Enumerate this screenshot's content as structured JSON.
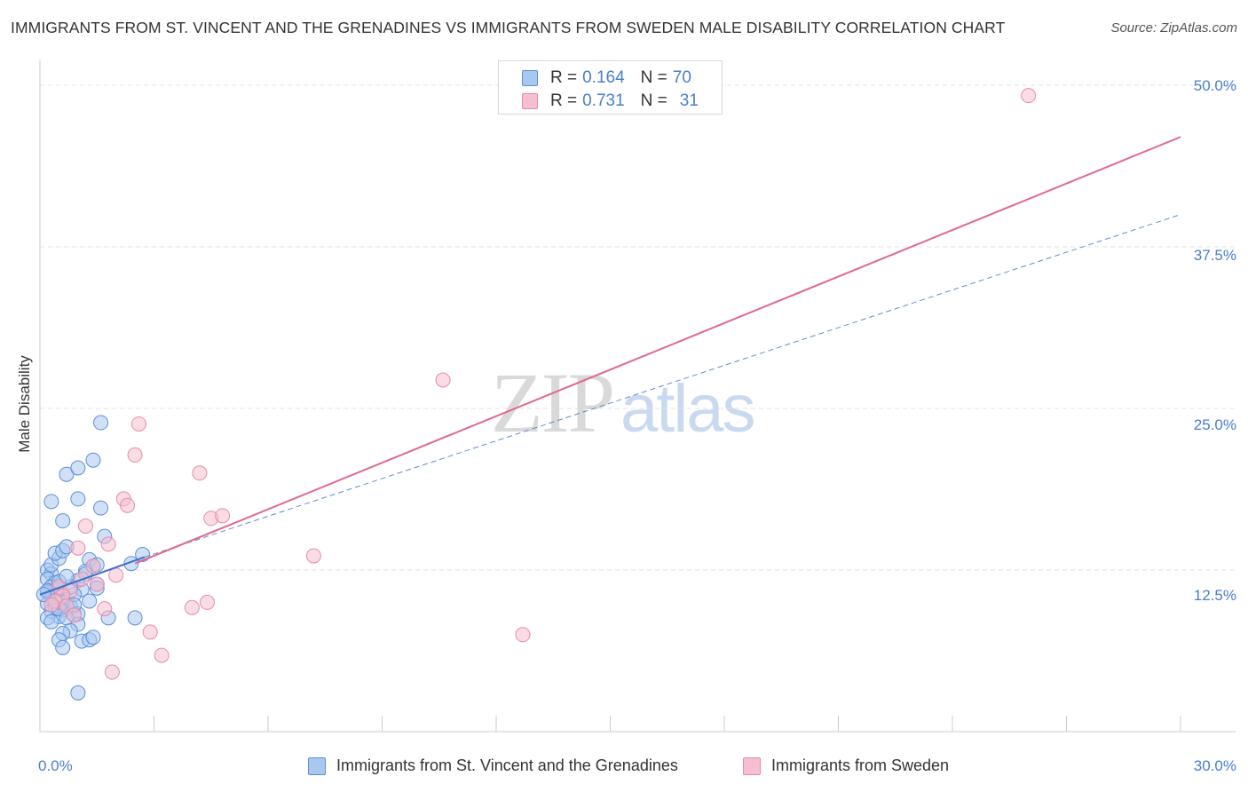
{
  "header": {
    "title": "IMMIGRANTS FROM ST. VINCENT AND THE GRENADINES VS IMMIGRANTS FROM SWEDEN MALE DISABILITY CORRELATION CHART",
    "source": "Source: ZipAtlas.com"
  },
  "watermark": {
    "zip": "ZIP",
    "atlas": "atlas"
  },
  "legend": {
    "rows": [
      {
        "r_label": "R =",
        "r_value": "0.164",
        "n_label": "N =",
        "n_value": "70"
      },
      {
        "r_label": "R =",
        "r_value": "0.731",
        "n_label": "N =",
        "n_value": "31"
      }
    ]
  },
  "colors": {
    "blue_fill": "#a9c8f0",
    "blue_stroke": "#5b8fd6",
    "blue_line": "#3a6fc8",
    "pink_fill": "#f6bfd0",
    "pink_stroke": "#e88aa8",
    "pink_line": "#e06890",
    "grid": "#e3e3e3",
    "axis_text": "#4a7fc9"
  },
  "chart_data": {
    "type": "scatter",
    "title": "IMMIGRANTS FROM ST. VINCENT AND THE GRENADINES VS IMMIGRANTS FROM SWEDEN MALE DISABILITY CORRELATION CHART",
    "xlabel": "",
    "ylabel": "Male Disability",
    "xlim": [
      0,
      30
    ],
    "ylim": [
      0,
      50
    ],
    "x_tick_labels": [
      "0.0%",
      "30.0%"
    ],
    "y_ticks": [
      12.5,
      25.0,
      37.5,
      50.0
    ],
    "y_tick_labels": [
      "12.5%",
      "25.0%",
      "37.5%",
      "50.0%"
    ],
    "grid": true,
    "legend_position": "top-center",
    "series": [
      {
        "name": "Immigrants from St. Vincent and the Grenadines",
        "color": "blue",
        "R": 0.164,
        "N": 70,
        "trend": {
          "x": [
            0,
            2.75
          ],
          "y": [
            10.6,
            13.5
          ],
          "extrapolated_x": [
            2.75,
            30
          ],
          "extrapolated_y": [
            13.5,
            40.0
          ]
        },
        "points": [
          [
            0.2,
            12.5
          ],
          [
            0.3,
            12.2
          ],
          [
            0.2,
            11.8
          ],
          [
            0.4,
            11.5
          ],
          [
            0.3,
            11.2
          ],
          [
            0.5,
            11.0
          ],
          [
            0.2,
            10.8
          ],
          [
            0.6,
            10.7
          ],
          [
            0.4,
            10.5
          ],
          [
            0.3,
            10.3
          ],
          [
            0.7,
            10.2
          ],
          [
            0.5,
            10.0
          ],
          [
            0.2,
            9.9
          ],
          [
            0.8,
            9.7
          ],
          [
            0.4,
            9.6
          ],
          [
            0.6,
            9.4
          ],
          [
            0.3,
            9.3
          ],
          [
            0.9,
            9.1
          ],
          [
            0.5,
            8.9
          ],
          [
            0.2,
            8.8
          ],
          [
            0.3,
            12.9
          ],
          [
            0.5,
            13.4
          ],
          [
            0.4,
            13.8
          ],
          [
            0.6,
            14.0
          ],
          [
            0.7,
            14.3
          ],
          [
            0.3,
            17.8
          ],
          [
            1.0,
            18.0
          ],
          [
            0.6,
            16.3
          ],
          [
            0.7,
            19.9
          ],
          [
            1.0,
            20.4
          ],
          [
            1.4,
            21.0
          ],
          [
            1.6,
            23.9
          ],
          [
            1.6,
            17.3
          ],
          [
            1.7,
            15.1
          ],
          [
            1.3,
            13.3
          ],
          [
            1.4,
            12.8
          ],
          [
            1.5,
            12.9
          ],
          [
            1.2,
            12.4
          ],
          [
            1.0,
            11.7
          ],
          [
            1.5,
            11.4
          ],
          [
            1.1,
            11.0
          ],
          [
            0.9,
            10.6
          ],
          [
            1.3,
            10.1
          ],
          [
            0.6,
            10.0
          ],
          [
            0.5,
            9.5
          ],
          [
            1.0,
            9.1
          ],
          [
            0.7,
            8.8
          ],
          [
            0.3,
            8.5
          ],
          [
            1.8,
            8.8
          ],
          [
            2.5,
            8.8
          ],
          [
            1.0,
            8.3
          ],
          [
            0.8,
            7.8
          ],
          [
            0.6,
            7.6
          ],
          [
            0.5,
            7.1
          ],
          [
            1.1,
            7.0
          ],
          [
            1.3,
            7.1
          ],
          [
            1.4,
            7.3
          ],
          [
            0.6,
            6.5
          ],
          [
            1.0,
            3.0
          ],
          [
            2.4,
            13.0
          ],
          [
            2.7,
            13.7
          ],
          [
            1.2,
            12.2
          ],
          [
            0.8,
            11.2
          ],
          [
            0.2,
            10.9
          ],
          [
            0.4,
            10.1
          ],
          [
            0.9,
            9.8
          ],
          [
            1.5,
            11.1
          ],
          [
            0.1,
            10.6
          ],
          [
            0.5,
            11.6
          ],
          [
            0.7,
            12.0
          ]
        ]
      },
      {
        "name": "Immigrants from Sweden",
        "color": "pink",
        "R": 0.731,
        "N": 31,
        "trend": {
          "x": [
            2.5,
            30
          ],
          "y": [
            13.0,
            46.0
          ]
        },
        "points": [
          [
            26.0,
            49.2
          ],
          [
            10.6,
            27.2
          ],
          [
            2.6,
            23.8
          ],
          [
            2.5,
            21.4
          ],
          [
            4.2,
            20.0
          ],
          [
            2.2,
            18.0
          ],
          [
            2.3,
            17.5
          ],
          [
            4.5,
            16.5
          ],
          [
            4.8,
            16.7
          ],
          [
            1.2,
            15.9
          ],
          [
            1.8,
            14.5
          ],
          [
            1.0,
            14.2
          ],
          [
            7.2,
            13.6
          ],
          [
            1.4,
            12.8
          ],
          [
            2.0,
            12.1
          ],
          [
            1.5,
            11.4
          ],
          [
            0.5,
            11.2
          ],
          [
            0.8,
            10.9
          ],
          [
            0.6,
            10.5
          ],
          [
            0.4,
            10.1
          ],
          [
            0.7,
            9.7
          ],
          [
            1.7,
            9.5
          ],
          [
            4.0,
            9.6
          ],
          [
            4.4,
            10.0
          ],
          [
            0.9,
            9.0
          ],
          [
            2.9,
            7.7
          ],
          [
            12.7,
            7.5
          ],
          [
            3.2,
            5.9
          ],
          [
            1.9,
            4.6
          ],
          [
            0.3,
            9.8
          ],
          [
            1.1,
            11.8
          ]
        ]
      }
    ]
  },
  "bottom_legend": [
    {
      "label": "Immigrants from St. Vincent and the Grenadines"
    },
    {
      "label": "Immigrants from Sweden"
    }
  ]
}
